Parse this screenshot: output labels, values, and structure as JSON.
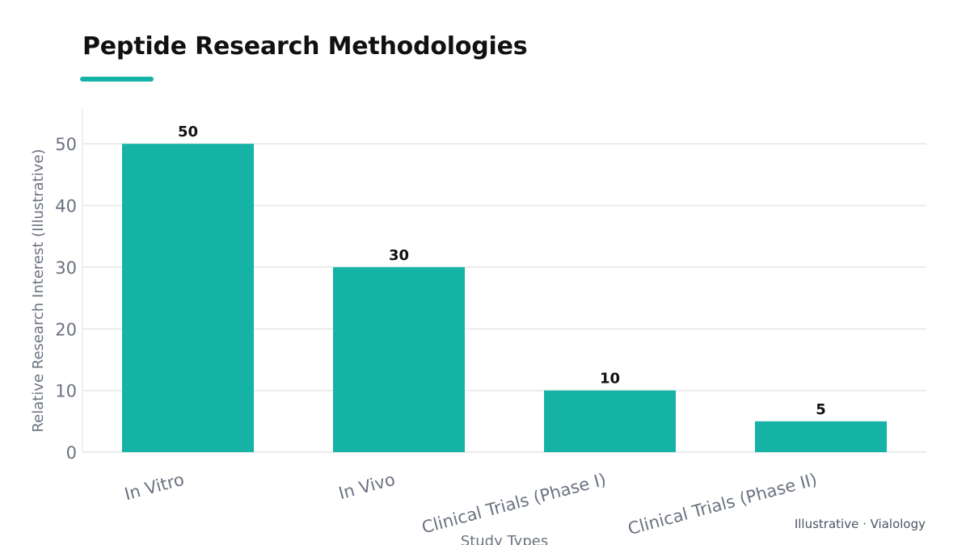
{
  "page": {
    "footer_note": "Illustrative · Vialology"
  },
  "colors": {
    "bar": "#14b3a6",
    "accent": "#14b3a6",
    "axis_text": "#6b7280",
    "grid": "#e9ebee",
    "value_label": "#111111"
  },
  "chart_data": {
    "type": "bar",
    "title": "Peptide Research Methodologies",
    "xlabel": "Study Types",
    "ylabel": "Relative Research Interest (Illustrative)",
    "categories": [
      "In Vitro",
      "In Vivo",
      "Clinical Trials (Phase I)",
      "Clinical Trials (Phase II)"
    ],
    "values": [
      50,
      30,
      10,
      5
    ],
    "ylim": [
      0,
      55
    ],
    "yticks": [
      0,
      10,
      20,
      30,
      40,
      50
    ],
    "grid": true,
    "legend": "none"
  }
}
